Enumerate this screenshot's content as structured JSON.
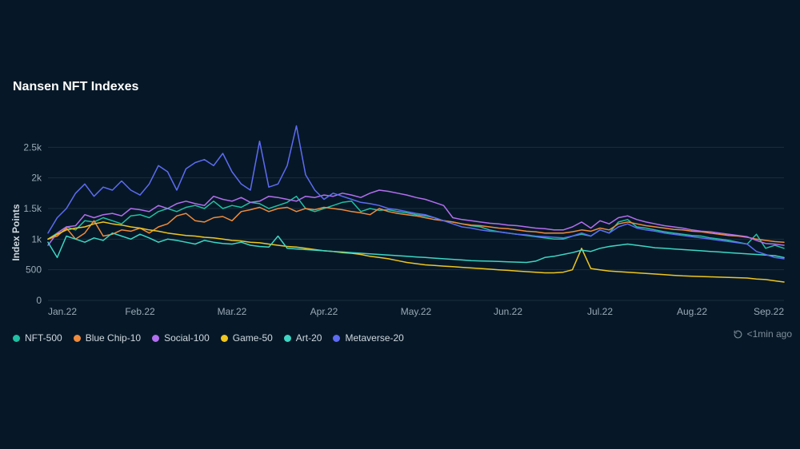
{
  "chart": {
    "type": "line",
    "title": "Nansen NFT Indexes",
    "background_color": "#061827",
    "grid_color": "#1b2e3f",
    "axis_text_color": "#9aa8b5",
    "ylabel": "Index Points",
    "ylabel_fontsize": 12,
    "title_fontsize": 16,
    "line_width": 1.5,
    "x": {
      "ticks": [
        "Jan.22",
        "Feb.22",
        "Mar.22",
        "Apr.22",
        "May.22",
        "Jun.22",
        "Jul.22",
        "Aug.22",
        "Sep.22"
      ],
      "min": 0,
      "max": 240
    },
    "y": {
      "min": 0,
      "max": 3000,
      "ticks": [
        0,
        500,
        1000,
        1500,
        2000,
        2500
      ],
      "tick_labels": [
        "0",
        "500",
        "1k",
        "1.5k",
        "2k",
        "2.5k"
      ]
    },
    "series": [
      {
        "name": "NFT-500",
        "color": "#21bfa3",
        "data": [
          1000,
          1100,
          1200,
          1150,
          1300,
          1280,
          1350,
          1300,
          1250,
          1380,
          1400,
          1350,
          1450,
          1500,
          1450,
          1520,
          1550,
          1500,
          1620,
          1500,
          1550,
          1520,
          1600,
          1580,
          1500,
          1550,
          1600,
          1700,
          1500,
          1450,
          1500,
          1550,
          1600,
          1620,
          1450,
          1500,
          1470,
          1480,
          1450,
          1430,
          1400,
          1380,
          1350,
          1300,
          1280,
          1250,
          1220,
          1200,
          1150,
          1120,
          1100,
          1080,
          1060,
          1040,
          1020,
          1000,
          1000,
          1050,
          1080,
          1050,
          1150,
          1100,
          1280,
          1320,
          1200,
          1180,
          1150,
          1120,
          1100,
          1080,
          1060,
          1050,
          1020,
          1000,
          980,
          950,
          920,
          1080,
          850,
          900,
          850
        ]
      },
      {
        "name": "Blue Chip-10",
        "color": "#f08b3c",
        "data": [
          1000,
          1050,
          1180,
          1000,
          1100,
          1300,
          1050,
          1080,
          1150,
          1130,
          1180,
          1100,
          1200,
          1250,
          1380,
          1420,
          1300,
          1280,
          1350,
          1370,
          1300,
          1450,
          1480,
          1520,
          1450,
          1500,
          1520,
          1450,
          1500,
          1480,
          1520,
          1500,
          1480,
          1450,
          1430,
          1400,
          1500,
          1450,
          1420,
          1400,
          1380,
          1350,
          1320,
          1300,
          1280,
          1250,
          1230,
          1220,
          1200,
          1180,
          1170,
          1150,
          1130,
          1120,
          1100,
          1100,
          1100,
          1120,
          1150,
          1130,
          1180,
          1150,
          1250,
          1280,
          1250,
          1220,
          1200,
          1180,
          1160,
          1150,
          1130,
          1120,
          1100,
          1080,
          1060,
          1050,
          1030,
          1000,
          980,
          960,
          950
        ]
      },
      {
        "name": "Social-100",
        "color": "#b46ef0",
        "data": [
          900,
          1100,
          1200,
          1220,
          1400,
          1350,
          1400,
          1420,
          1380,
          1500,
          1480,
          1450,
          1550,
          1500,
          1580,
          1620,
          1580,
          1550,
          1700,
          1650,
          1620,
          1680,
          1600,
          1620,
          1700,
          1680,
          1650,
          1620,
          1700,
          1680,
          1720,
          1700,
          1750,
          1720,
          1680,
          1750,
          1800,
          1780,
          1750,
          1720,
          1680,
          1650,
          1600,
          1550,
          1350,
          1320,
          1300,
          1280,
          1260,
          1250,
          1230,
          1220,
          1200,
          1180,
          1170,
          1150,
          1150,
          1200,
          1280,
          1180,
          1300,
          1250,
          1350,
          1380,
          1320,
          1280,
          1250,
          1220,
          1200,
          1180,
          1150,
          1130,
          1120,
          1100,
          1080,
          1060,
          1040,
          980,
          930,
          920,
          900
        ]
      },
      {
        "name": "Game-50",
        "color": "#efc61f",
        "data": [
          1000,
          1080,
          1150,
          1180,
          1200,
          1250,
          1280,
          1250,
          1230,
          1200,
          1180,
          1150,
          1130,
          1100,
          1080,
          1060,
          1050,
          1030,
          1020,
          1000,
          980,
          970,
          950,
          940,
          920,
          900,
          880,
          870,
          850,
          830,
          810,
          800,
          780,
          770,
          750,
          720,
          700,
          680,
          650,
          620,
          600,
          580,
          570,
          560,
          550,
          540,
          530,
          520,
          510,
          500,
          490,
          480,
          470,
          460,
          450,
          450,
          460,
          500,
          850,
          520,
          500,
          480,
          470,
          460,
          450,
          440,
          430,
          420,
          410,
          400,
          395,
          390,
          385,
          380,
          375,
          370,
          365,
          350,
          340,
          320,
          300
        ]
      },
      {
        "name": "Art-20",
        "color": "#3dd6c4",
        "data": [
          950,
          700,
          1050,
          1000,
          950,
          1020,
          980,
          1100,
          1050,
          1000,
          1080,
          1020,
          950,
          1000,
          980,
          950,
          920,
          980,
          950,
          930,
          920,
          950,
          900,
          880,
          870,
          1050,
          850,
          840,
          830,
          820,
          810,
          800,
          790,
          780,
          770,
          760,
          750,
          740,
          730,
          720,
          710,
          700,
          690,
          680,
          670,
          660,
          650,
          645,
          640,
          635,
          630,
          625,
          620,
          640,
          700,
          720,
          750,
          780,
          820,
          800,
          850,
          880,
          900,
          920,
          900,
          880,
          860,
          850,
          840,
          830,
          820,
          810,
          800,
          790,
          780,
          770,
          760,
          750,
          740,
          730,
          700
        ]
      },
      {
        "name": "Metaverse-20",
        "color": "#5e6bf2",
        "data": [
          1100,
          1350,
          1500,
          1750,
          1900,
          1700,
          1850,
          1800,
          1950,
          1800,
          1720,
          1900,
          2200,
          2100,
          1800,
          2150,
          2250,
          2300,
          2200,
          2400,
          2100,
          1900,
          1800,
          2600,
          1850,
          1900,
          2200,
          2850,
          2050,
          1800,
          1650,
          1750,
          1700,
          1650,
          1600,
          1580,
          1550,
          1500,
          1480,
          1450,
          1420,
          1400,
          1350,
          1300,
          1250,
          1200,
          1180,
          1150,
          1130,
          1120,
          1100,
          1080,
          1070,
          1050,
          1040,
          1030,
          1020,
          1050,
          1100,
          1050,
          1150,
          1100,
          1200,
          1250,
          1180,
          1150,
          1130,
          1100,
          1080,
          1060,
          1040,
          1020,
          1000,
          980,
          960,
          940,
          920,
          800,
          750,
          700,
          680
        ]
      }
    ],
    "legend": {
      "position": "bottom-left",
      "fontsize": 12,
      "dot_size": 9
    }
  },
  "status": {
    "refresh_text": "<1min ago"
  }
}
